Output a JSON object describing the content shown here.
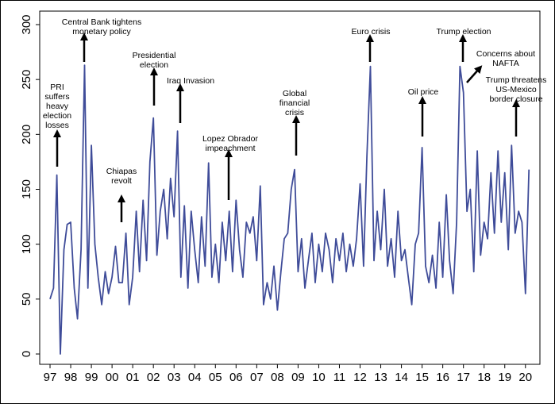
{
  "chart_data": {
    "type": "line",
    "x": [
      1997,
      1997.17,
      1997.33,
      1997.5,
      1997.67,
      1997.83,
      1998,
      1998.17,
      1998.33,
      1998.5,
      1998.67,
      1998.83,
      1999,
      1999.17,
      1999.33,
      1999.5,
      1999.67,
      1999.83,
      2000,
      2000.17,
      2000.33,
      2000.5,
      2000.67,
      2000.83,
      2001,
      2001.17,
      2001.33,
      2001.5,
      2001.67,
      2001.83,
      2002,
      2002.17,
      2002.33,
      2002.5,
      2002.67,
      2002.83,
      2003,
      2003.17,
      2003.33,
      2003.5,
      2003.67,
      2003.83,
      2004,
      2004.17,
      2004.33,
      2004.5,
      2004.67,
      2004.83,
      2005,
      2005.17,
      2005.33,
      2005.5,
      2005.67,
      2005.83,
      2006,
      2006.17,
      2006.33,
      2006.5,
      2006.67,
      2006.83,
      2007,
      2007.17,
      2007.33,
      2007.5,
      2007.67,
      2007.83,
      2008,
      2008.17,
      2008.33,
      2008.5,
      2008.67,
      2008.83,
      2009,
      2009.17,
      2009.33,
      2009.5,
      2009.67,
      2009.83,
      2010,
      2010.17,
      2010.33,
      2010.5,
      2010.67,
      2010.83,
      2011,
      2011.17,
      2011.33,
      2011.5,
      2011.67,
      2011.83,
      2012,
      2012.17,
      2012.33,
      2012.5,
      2012.67,
      2012.83,
      2013,
      2013.17,
      2013.33,
      2013.5,
      2013.67,
      2013.83,
      2014,
      2014.17,
      2014.33,
      2014.5,
      2014.67,
      2014.83,
      2015,
      2015.17,
      2015.33,
      2015.5,
      2015.67,
      2015.83,
      2016,
      2016.17,
      2016.33,
      2016.5,
      2016.67,
      2016.83,
      2017,
      2017.17,
      2017.33,
      2017.5,
      2017.67,
      2017.83,
      2018,
      2018.17,
      2018.33,
      2018.5,
      2018.67,
      2018.83,
      2019,
      2019.17,
      2019.33,
      2019.5,
      2019.67,
      2019.83,
      2020,
      2020.17
    ],
    "series": [
      {
        "color": "#3f4c99",
        "values": [
          50,
          60,
          163,
          0,
          95,
          118,
          120,
          60,
          32,
          95,
          263,
          60,
          190,
          100,
          70,
          45,
          75,
          55,
          70,
          98,
          65,
          65,
          110,
          45,
          70,
          130,
          75,
          140,
          85,
          175,
          215,
          90,
          130,
          150,
          105,
          160,
          125,
          203,
          70,
          135,
          60,
          130,
          95,
          65,
          125,
          80,
          174,
          70,
          100,
          65,
          120,
          85,
          130,
          75,
          140,
          95,
          70,
          120,
          110,
          125,
          85,
          153,
          45,
          65,
          50,
          80,
          40,
          75,
          105,
          110,
          150,
          168,
          75,
          105,
          60,
          85,
          110,
          65,
          100,
          75,
          110,
          95,
          65,
          105,
          85,
          110,
          75,
          100,
          80,
          105,
          155,
          80,
          180,
          262,
          85,
          130,
          95,
          150,
          80,
          105,
          70,
          130,
          85,
          95,
          70,
          45,
          100,
          110,
          188,
          80,
          65,
          90,
          60,
          120,
          70,
          145,
          85,
          55,
          120,
          262,
          238,
          130,
          150,
          75,
          185,
          90,
          120,
          105,
          165,
          110,
          185,
          120,
          165,
          95,
          190,
          110,
          130,
          120,
          55,
          168
        ]
      }
    ],
    "ylim": [
      0,
      300
    ],
    "yticks": [
      0,
      50,
      100,
      150,
      200,
      250,
      300
    ],
    "xlim": [
      1996.5,
      2020.7
    ],
    "xticks": [
      {
        "value": 1997,
        "label": "97"
      },
      {
        "value": 1998,
        "label": "98"
      },
      {
        "value": 1999,
        "label": "99"
      },
      {
        "value": 2000,
        "label": "00"
      },
      {
        "value": 2001,
        "label": "01"
      },
      {
        "value": 2002,
        "label": "02"
      },
      {
        "value": 2003,
        "label": "03"
      },
      {
        "value": 2004,
        "label": "04"
      },
      {
        "value": 2005,
        "label": "05"
      },
      {
        "value": 2006,
        "label": "06"
      },
      {
        "value": 2007,
        "label": "07"
      },
      {
        "value": 2008,
        "label": "08"
      },
      {
        "value": 2009,
        "label": "09"
      },
      {
        "value": 2010,
        "label": "10"
      },
      {
        "value": 2011,
        "label": "11"
      },
      {
        "value": 2012,
        "label": "12"
      },
      {
        "value": 2013,
        "label": "13"
      },
      {
        "value": 2014,
        "label": "14"
      },
      {
        "value": 2015,
        "label": "15"
      },
      {
        "value": 2016,
        "label": "16"
      },
      {
        "value": 2017,
        "label": "17"
      },
      {
        "value": 2018,
        "label": "18"
      },
      {
        "value": 2019,
        "label": "19"
      },
      {
        "value": 2020,
        "label": "20"
      }
    ],
    "annotations": [
      [
        "PRI",
        "suffers",
        "heavy",
        "election",
        "losses"
      ],
      [
        "Central Bank tightens",
        "monetary policy"
      ],
      [
        "Chiapas",
        "revolt"
      ],
      [
        "Presidential",
        "election"
      ],
      [
        "Iraq Invasion"
      ],
      [
        "Lopez Obrador",
        "impeachment"
      ],
      [
        "Global",
        "financial",
        "crisis"
      ],
      [
        "Euro crisis"
      ],
      [
        "Trump election"
      ],
      [
        "Oil price"
      ],
      [
        "Concerns about",
        "NAFTA"
      ],
      [
        "Trump threatens",
        "US-Mexico",
        "border closure"
      ]
    ]
  }
}
